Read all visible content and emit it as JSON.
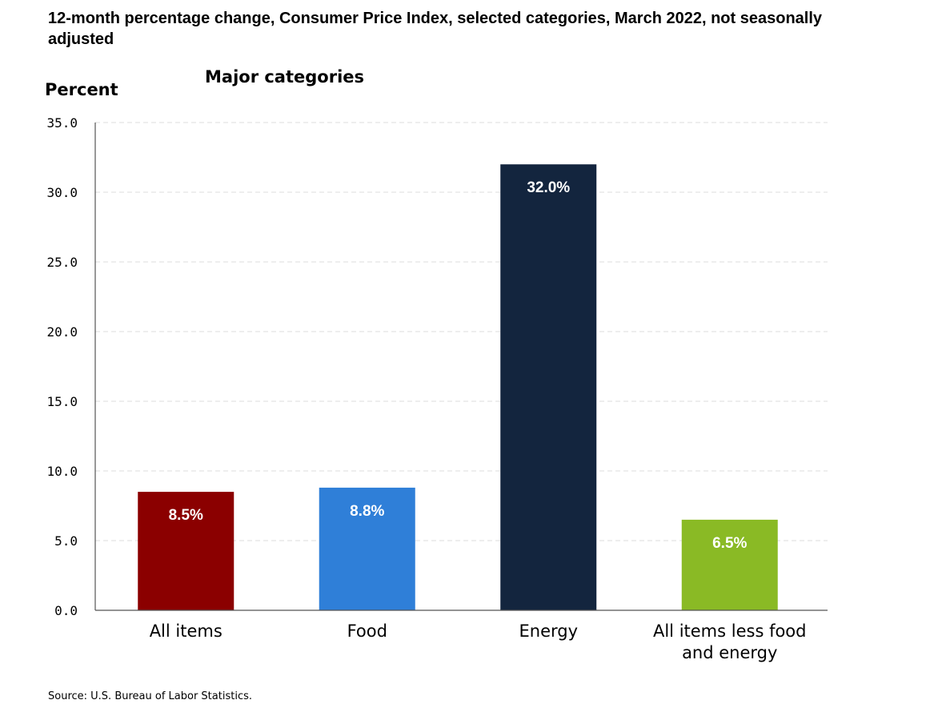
{
  "title": "12-month percentage change, Consumer Price Index, selected categories, March 2022, not seasonally adjusted",
  "source": "Source: U.S. Bureau of Labor Statistics.",
  "chart_data": {
    "type": "bar",
    "title": "12-month percentage change, Consumer Price Index, selected categories, March 2022, not seasonally adjusted",
    "subtitle": "Major categories",
    "xlabel": "",
    "ylabel": "Percent",
    "ylim": [
      0,
      35
    ],
    "yticks": [
      0,
      5,
      10,
      15,
      20,
      25,
      30,
      35
    ],
    "ytick_labels": [
      "0.0",
      "5.0",
      "10.0",
      "15.0",
      "20.0",
      "25.0",
      "30.0",
      "35.0"
    ],
    "grid": true,
    "categories": [
      "All items",
      "Food",
      "Energy",
      "All items less food and energy"
    ],
    "category_label_lines": [
      [
        "All items"
      ],
      [
        "Food"
      ],
      [
        "Energy"
      ],
      [
        "All items less food",
        "and energy"
      ]
    ],
    "values": [
      8.5,
      8.8,
      32.0,
      6.5
    ],
    "data_labels": [
      "8.5%",
      "8.8%",
      "32.0%",
      "6.5%"
    ],
    "colors": [
      "#8b0000",
      "#2f7fd8",
      "#13253e",
      "#8aba25"
    ]
  }
}
